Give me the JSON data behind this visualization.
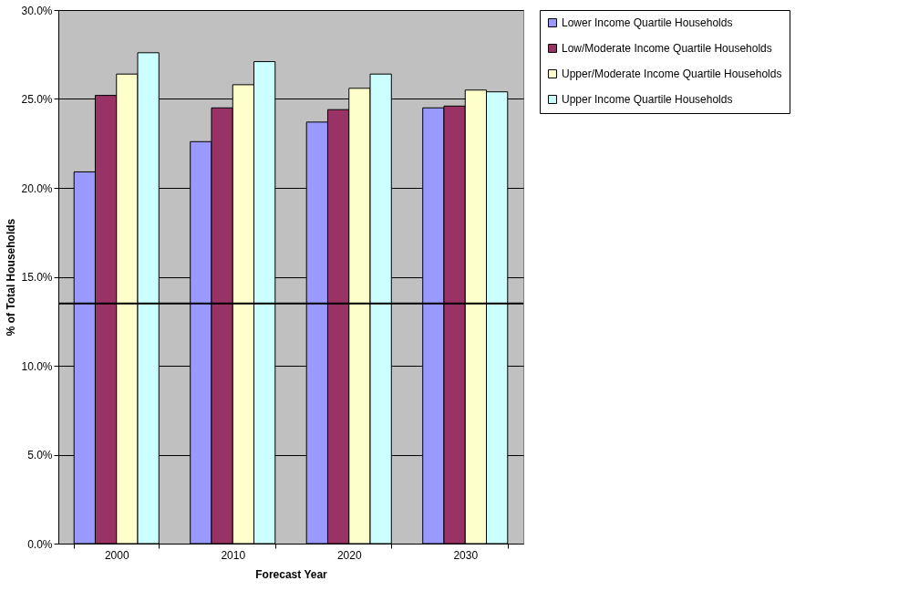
{
  "chart_data": {
    "type": "bar",
    "xlabel": "Forecast Year",
    "ylabel": "% of Total Households",
    "categories": [
      "2000",
      "2010",
      "2020",
      "2030"
    ],
    "series": [
      {
        "name": "Lower Income Quartile Households",
        "color": "#9999ff",
        "values": [
          20.9,
          22.6,
          23.7,
          24.5
        ]
      },
      {
        "name": "Low/Moderate Income Quartile Households",
        "color": "#993366",
        "values": [
          25.2,
          24.5,
          24.4,
          24.6
        ]
      },
      {
        "name": "Upper/Moderate Income Quartile Households",
        "color": "#ffffcc",
        "values": [
          26.4,
          25.8,
          25.6,
          25.5
        ]
      },
      {
        "name": "Upper Income Quartile Households",
        "color": "#ccffff",
        "values": [
          27.6,
          27.1,
          26.4,
          25.4
        ]
      }
    ],
    "ylim": [
      0,
      30
    ],
    "yticks": [
      {
        "value": 0,
        "label": "0.0%"
      },
      {
        "value": 5,
        "label": "5.0%"
      },
      {
        "value": 10,
        "label": "10.0%"
      },
      {
        "value": 15,
        "label": "15.0%"
      },
      {
        "value": 20,
        "label": "20.0%"
      },
      {
        "value": 25,
        "label": "25.0%"
      },
      {
        "value": 30,
        "label": "30.0%"
      }
    ],
    "ref_lines": [
      {
        "axis": "y",
        "value": 13.5,
        "color": "#000000"
      }
    ],
    "grid": "y",
    "legend": "right"
  }
}
